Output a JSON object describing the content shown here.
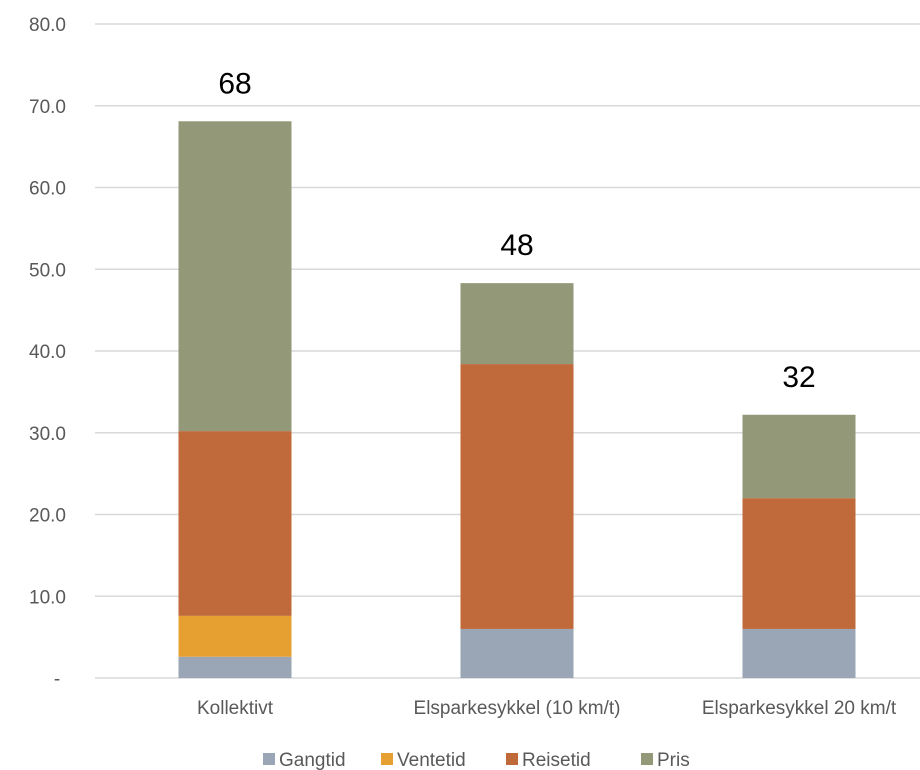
{
  "chart_data": {
    "type": "bar",
    "stacked": true,
    "categories": [
      "Kollektivt",
      "Elsparkesykkel (10 km/t)",
      "Elsparkesykkel 20 km/t"
    ],
    "series": [
      {
        "name": "Gangtid",
        "color": "#9aa6b6",
        "values": [
          2.6,
          6.0,
          6.0
        ]
      },
      {
        "name": "Ventetid",
        "color": "#e6a032",
        "values": [
          5.0,
          0,
          0
        ]
      },
      {
        "name": "Reisetid",
        "color": "#c0693a",
        "values": [
          22.6,
          32.4,
          16.0
        ]
      },
      {
        "name": "Pris",
        "color": "#939878",
        "values": [
          37.9,
          9.9,
          10.2
        ]
      }
    ],
    "totals": [
      "68",
      "48",
      "32"
    ],
    "y_ticks": [
      "-",
      "10.0",
      "20.0",
      "30.0",
      "40.0",
      "50.0",
      "60.0",
      "70.0",
      "80.0"
    ],
    "ylim": [
      0,
      80
    ],
    "grid": true,
    "legend_position": "bottom",
    "title": "",
    "xlabel": "",
    "ylabel": ""
  }
}
